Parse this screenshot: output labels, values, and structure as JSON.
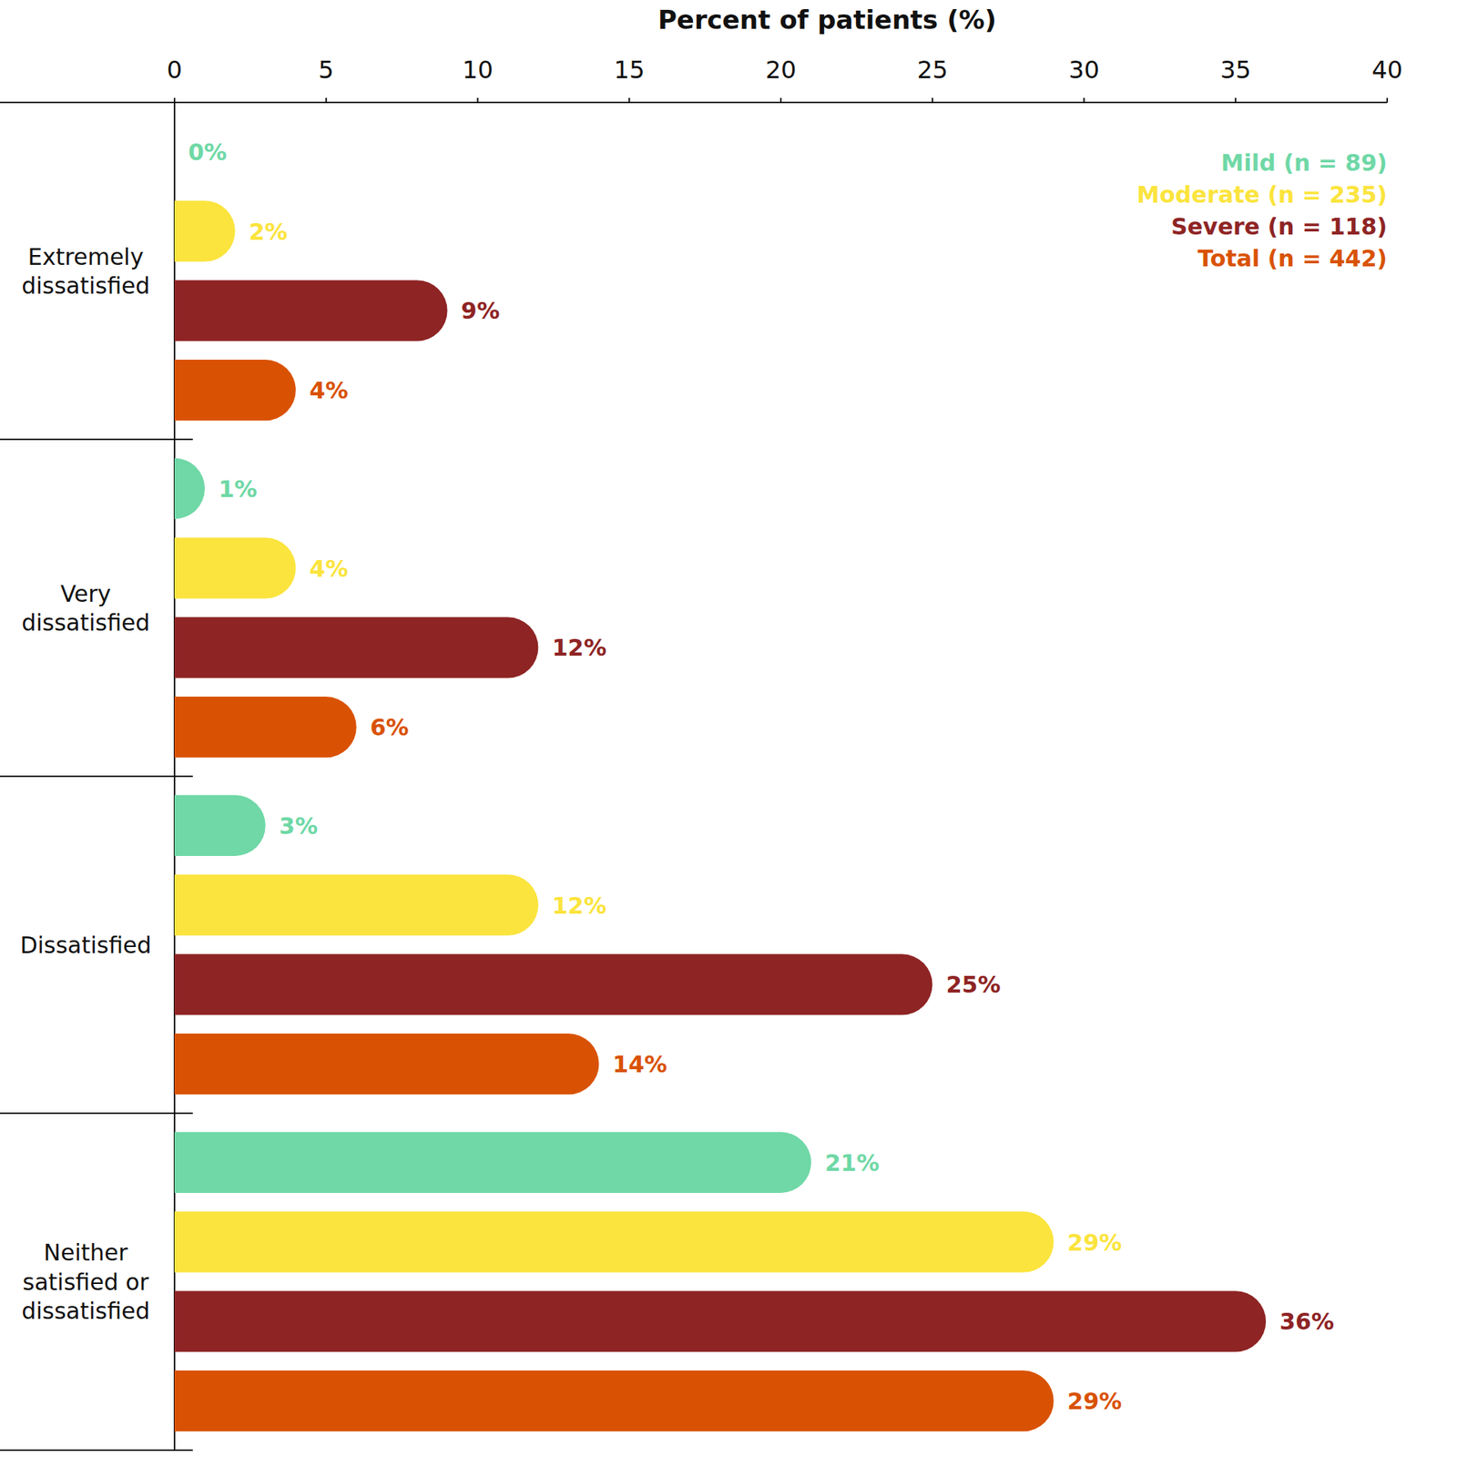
{
  "chart_data": {
    "type": "bar",
    "orientation": "horizontal",
    "x_label": "Percent of patients (%)",
    "categories": [
      "Extremely dissatisfied",
      "Very dissatisfied",
      "Dissatisfied",
      "Neither satisfied or dissatisfied"
    ],
    "series": [
      {
        "name": "Mild (n = 89)",
        "color": "#6fd8a6",
        "values": [
          0,
          1,
          3,
          21
        ],
        "value_labels": [
          "0%",
          "1%",
          "3%",
          "21%"
        ]
      },
      {
        "name": "Moderate (n = 235)",
        "color": "#fbe43d",
        "values": [
          2,
          4,
          12,
          29
        ],
        "value_labels": [
          "2%",
          "4%",
          "12%",
          "29%"
        ]
      },
      {
        "name": "Severe (n = 118)",
        "color": "#8e2424",
        "values": [
          9,
          12,
          25,
          36
        ],
        "value_labels": [
          "9%",
          "12%",
          "25%",
          "36%"
        ]
      },
      {
        "name": "Total (n = 442)",
        "color": "#d95204",
        "values": [
          4,
          6,
          14,
          29
        ],
        "value_labels": [
          "4%",
          "6%",
          "14%",
          "29%"
        ]
      }
    ],
    "xlim": [
      0,
      40
    ],
    "xticks": [
      0,
      5,
      10,
      15,
      20,
      25,
      30,
      35,
      40
    ],
    "grid": false,
    "legend": "upper right",
    "data_labels": true
  }
}
